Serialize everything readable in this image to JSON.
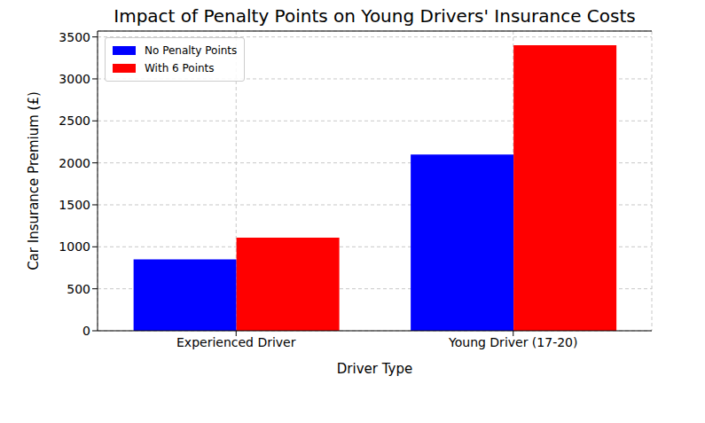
{
  "chart_data": {
    "type": "bar",
    "title": "Impact of Penalty Points on Young Drivers' Insurance Costs",
    "x_label": "Driver Type",
    "y_label": "Car Insurance Premium (£)",
    "categories": [
      "Experienced Driver",
      "Young Driver (17-20)"
    ],
    "series": [
      {
        "name": "No Penalty Points",
        "color": "#0000ff",
        "values": [
          850,
          2100
        ]
      },
      {
        "name": "With 6 Points",
        "color": "#ff0000",
        "values": [
          1110,
          3400
        ]
      }
    ],
    "ylim": [
      0,
      3570
    ],
    "yticks": [
      0,
      500,
      1000,
      1500,
      2000,
      2500,
      3000,
      3500
    ],
    "grid": true,
    "legend": "upper left"
  }
}
